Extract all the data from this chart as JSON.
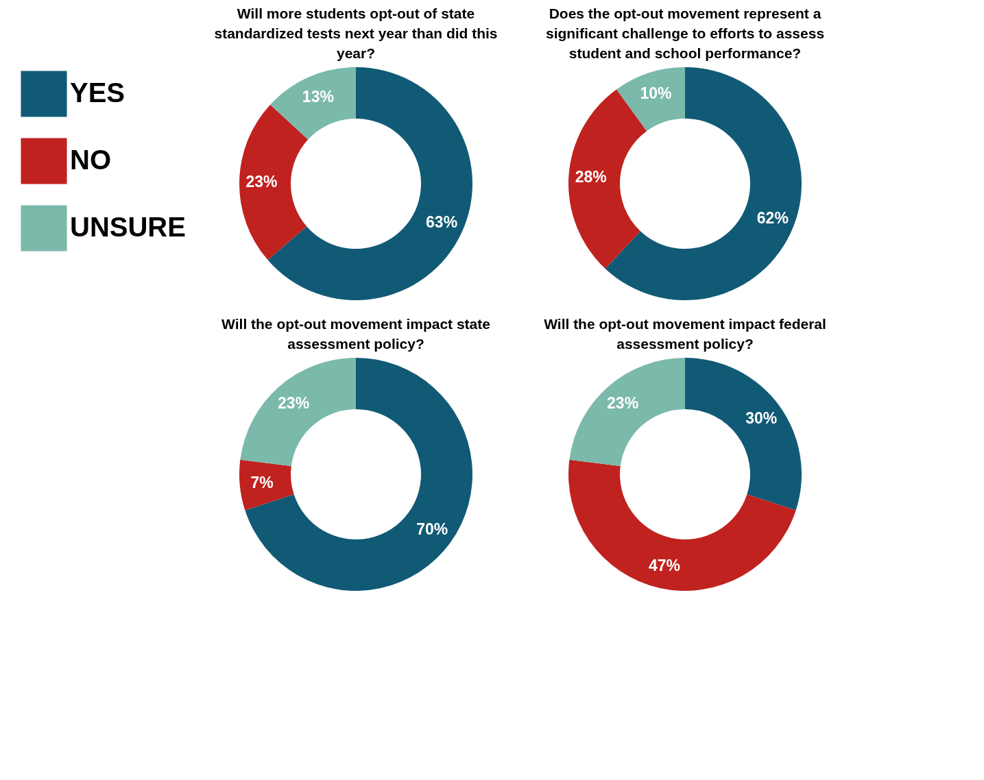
{
  "chart_data": [
    {
      "type": "donut",
      "title": "Will more students opt-out of state standardized tests next year than did this year?",
      "categories": [
        "YES",
        "NO",
        "UNSURE"
      ],
      "values": [
        63,
        23,
        13
      ],
      "value_labels": [
        "63%",
        "23%",
        "13%"
      ],
      "colors": [
        "#115a75",
        "#c0221f",
        "#7bb9ab"
      ],
      "legend": "left"
    },
    {
      "type": "donut",
      "title": "Does the opt-out movement represent a significant challenge to efforts to assess student and school performance?",
      "values": [
        62,
        28,
        10
      ],
      "value_labels": [
        "62%",
        "28%",
        "10%"
      ],
      "colors": [
        "#115a75",
        "#c0221f",
        "#7bb9ab"
      ]
    },
    {
      "type": "donut",
      "title": "Will the opt-out movement impact state assessment policy?",
      "values": [
        70,
        7,
        23
      ],
      "value_labels": [
        "70%",
        "7%",
        "23%"
      ],
      "colors": [
        "#115a75",
        "#c0221f",
        "#7bb9ab"
      ]
    },
    {
      "type": "donut",
      "title": "Will the opt-out movement impact federal assessment policy?",
      "values": [
        30,
        47,
        23
      ],
      "value_labels": [
        "30%",
        "47%",
        "23%"
      ],
      "colors": [
        "#115a75",
        "#c0221f",
        "#7bb9ab"
      ]
    }
  ]
}
